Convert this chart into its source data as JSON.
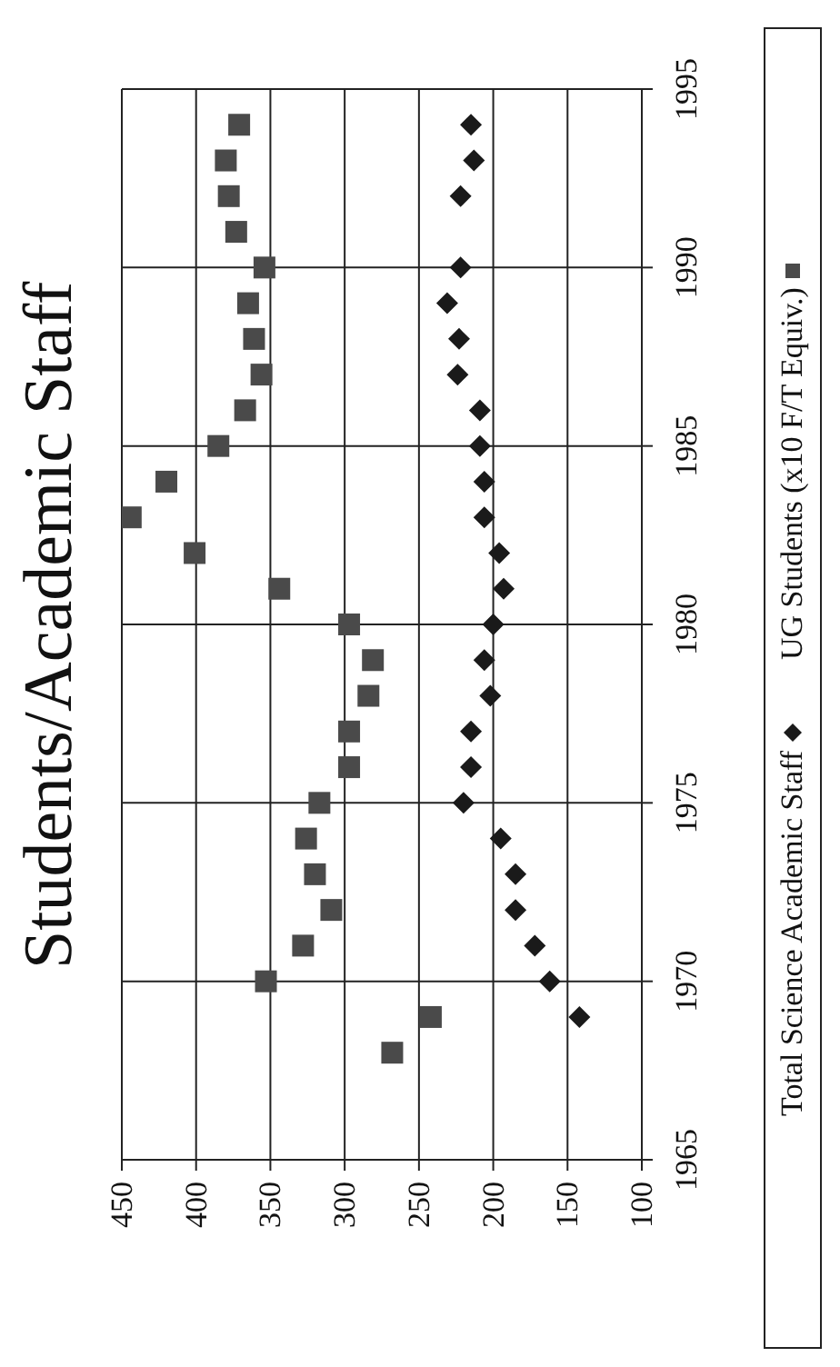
{
  "chart_data": {
    "type": "scatter",
    "title": "Students/Academic Staff",
    "xlim": [
      450,
      100
    ],
    "xticks": [
      450,
      400,
      350,
      300,
      250,
      200,
      150,
      100
    ],
    "ylim": [
      1965,
      1995
    ],
    "yticks": [
      1965,
      1970,
      1975,
      1980,
      1985,
      1990,
      1995
    ],
    "grid": true,
    "legend": "right",
    "series": [
      {
        "name": "Total Science Academic Staff",
        "color": "#1a1a1a",
        "marker": "diamond",
        "x": [
          142,
          162,
          172,
          185,
          185,
          195,
          220,
          215,
          215,
          202,
          206,
          200,
          193,
          196,
          206,
          206,
          209,
          209,
          224,
          223,
          231,
          222,
          222,
          213,
          215
        ],
        "values": [
          1969,
          1970,
          1971,
          1972,
          1973,
          1974,
          1975,
          1976,
          1977,
          1978,
          1979,
          1980,
          1981,
          1982,
          1983,
          1984,
          1985,
          1986,
          1987,
          1988,
          1989,
          1990,
          1992,
          1993,
          1994
        ]
      },
      {
        "name": "UG Students (x10 F/T Equiv.)",
        "color": "#4a4a4a",
        "marker": "square",
        "x": [
          268,
          242,
          353,
          328,
          309,
          320,
          326,
          317,
          297,
          297,
          284,
          281,
          297,
          344,
          401,
          444,
          420,
          385,
          367,
          356,
          361,
          365,
          354,
          373,
          378,
          380,
          371
        ],
        "values": [
          1968,
          1969,
          1970,
          1971,
          1972,
          1973,
          1974,
          1975,
          1976,
          1977,
          1978,
          1979,
          1980,
          1981,
          1982,
          1983,
          1984,
          1985,
          1986,
          1987,
          1988,
          1989,
          1990,
          1991,
          1992,
          1993,
          1994
        ]
      }
    ]
  }
}
